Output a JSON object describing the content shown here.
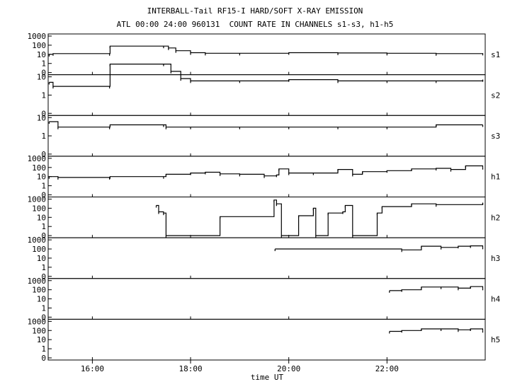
{
  "chart_data": {
    "type": "line",
    "title": "INTERBALL-Tail RF15-I HARD/SOFT X-RAY EMISSION",
    "subtitle": "ATL 00:00 24:00 960131  COUNT RATE IN CHANNELS s1-s3, h1-h5",
    "xlabel": "time UT",
    "x_tick_labels": [
      "16:00",
      "18:00",
      "20:00",
      "22:00"
    ],
    "x_ticks_hours": [
      16,
      18,
      20,
      22
    ],
    "xlim_hours": [
      15.1,
      24.0
    ],
    "y_scale": "log",
    "grid": false,
    "panels": [
      {
        "name": "s1",
        "y_tick_labels": [
          "1000",
          "100",
          "10",
          "1",
          "0"
        ],
        "data_hours": [
          15.12,
          15.2,
          16.35,
          16.36,
          17.45,
          17.55,
          17.7,
          18.0,
          18.3,
          19.0,
          20.0,
          21.0,
          22.0,
          23.0,
          23.95
        ],
        "data_values": [
          10,
          12,
          12,
          80,
          80,
          50,
          25,
          15,
          13,
          13,
          15,
          14,
          13,
          12,
          13
        ]
      },
      {
        "name": "s2",
        "y_tick_labels": [
          "10",
          "1",
          "0"
        ],
        "data_hours": [
          15.12,
          15.2,
          16.35,
          16.36,
          17.45,
          17.6,
          17.8,
          18.0,
          19.0,
          20.0,
          21.0,
          22.0,
          23.0,
          23.95
        ],
        "data_values": [
          5,
          3,
          3,
          50,
          50,
          20,
          8,
          6,
          6,
          7,
          6,
          6,
          6,
          7
        ]
      },
      {
        "name": "s3",
        "y_tick_labels": [
          "10",
          "1",
          "0"
        ],
        "data_hours": [
          15.12,
          15.3,
          16.35,
          16.36,
          17.45,
          17.5,
          18.0,
          19.0,
          20.0,
          21.0,
          22.0,
          23.0,
          23.95
        ],
        "data_values": [
          6,
          3,
          3,
          4,
          4,
          3,
          3,
          3,
          3,
          3,
          3,
          4,
          4
        ]
      },
      {
        "name": "h1",
        "y_tick_labels": [
          "1000",
          "100",
          "10",
          "1",
          "0"
        ],
        "data_hours": [
          15.12,
          15.3,
          16.35,
          16.36,
          17.45,
          17.5,
          18.0,
          18.3,
          18.6,
          19.0,
          19.5,
          19.75,
          19.8,
          20.0,
          20.5,
          21.0,
          21.3,
          21.5,
          22.0,
          22.5,
          23.0,
          23.3,
          23.6,
          23.95
        ],
        "data_values": [
          10,
          8,
          8,
          10,
          10,
          18,
          25,
          30,
          20,
          18,
          12,
          15,
          70,
          25,
          25,
          60,
          18,
          35,
          45,
          70,
          80,
          60,
          150,
          100
        ]
      },
      {
        "name": "h2",
        "y_tick_labels": [
          "1000",
          "100",
          "10",
          "1",
          "0"
        ],
        "data_hours": [
          17.3,
          17.35,
          17.45,
          17.5,
          18.6,
          19.7,
          19.75,
          19.85,
          20.2,
          20.5,
          20.55,
          20.8,
          21.1,
          21.15,
          21.3,
          21.8,
          21.9,
          22.5,
          23.0,
          23.95
        ],
        "data_values": [
          200,
          40,
          30,
          0,
          12,
          800,
          300,
          0,
          15,
          100,
          0,
          30,
          40,
          200,
          0,
          30,
          150,
          300,
          250,
          400
        ]
      },
      {
        "name": "h3",
        "y_tick_labels": [
          "1000",
          "100",
          "10",
          "1",
          "0"
        ],
        "data_hours": [
          19.72,
          22.3,
          22.7,
          23.1,
          23.45,
          23.7,
          23.95
        ],
        "data_values": [
          100,
          80,
          200,
          150,
          200,
          220,
          160
        ]
      },
      {
        "name": "h4",
        "y_tick_labels": [
          "1000",
          "100",
          "10",
          "1",
          "0"
        ],
        "data_hours": [
          22.05,
          22.3,
          22.7,
          23.1,
          23.45,
          23.7,
          23.95
        ],
        "data_values": [
          80,
          100,
          200,
          200,
          150,
          220,
          150
        ]
      },
      {
        "name": "h5",
        "y_tick_labels": [
          "1000",
          "100",
          "10",
          "1",
          "0"
        ],
        "data_hours": [
          22.05,
          22.3,
          22.7,
          23.1,
          23.45,
          23.7,
          23.95
        ],
        "data_values": [
          80,
          100,
          150,
          150,
          120,
          150,
          100
        ]
      }
    ]
  }
}
